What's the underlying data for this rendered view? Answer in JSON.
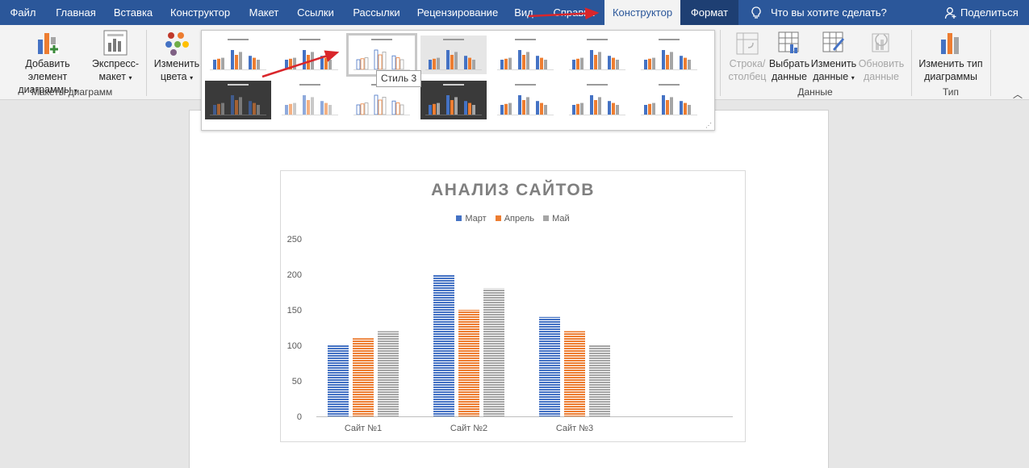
{
  "tabs": {
    "file": "Файл",
    "home": "Главная",
    "insert": "Вставка",
    "design": "Конструктор",
    "layout": "Макет",
    "references": "Ссылки",
    "mailings": "Рассылки",
    "review": "Рецензирование",
    "view": "Вид",
    "help": "Справка",
    "chart_design": "Конструктор",
    "format": "Формат"
  },
  "tell_me": "Что вы хотите сделать?",
  "share": "Поделиться",
  "ribbon": {
    "add_element_line1": "Добавить элемент",
    "add_element_line2": "диаграммы",
    "quick_layout_line1": "Экспресс-",
    "quick_layout_line2": "макет",
    "group_layouts": "Макеты диаграмм",
    "change_colors_line1": "Изменить",
    "change_colors_line2": "цвета",
    "switch_row_line1": "Строка/",
    "switch_row_line2": "столбец",
    "select_data_line1": "Выбрать",
    "select_data_line2": "данные",
    "edit_data_line1": "Изменить",
    "edit_data_line2": "данные",
    "refresh_data_line1": "Обновить",
    "refresh_data_line2": "данные",
    "group_data": "Данные",
    "change_type_line1": "Изменить тип",
    "change_type_line2": "диаграммы",
    "group_type": "Тип"
  },
  "gallery": {
    "tooltip": "Стиль 3",
    "selected_index": 2
  },
  "colors": {
    "word_blue": "#2b579a",
    "context_tab": "#1e3f73",
    "arrow": "#d9262b",
    "series_blue": "#4472c4",
    "series_orange": "#ed7d31",
    "series_gray": "#a5a5a5"
  },
  "chart_data": {
    "type": "bar",
    "title": "АНАЛИЗ САЙТОВ",
    "categories": [
      "Сайт №1",
      "Сайт №2",
      "Сайт №3"
    ],
    "series": [
      {
        "name": "Март",
        "values": [
          100,
          200,
          140
        ],
        "color": "#4472c4"
      },
      {
        "name": "Апрель",
        "values": [
          110,
          150,
          120
        ],
        "color": "#ed7d31"
      },
      {
        "name": "Май",
        "values": [
          120,
          180,
          100
        ],
        "color": "#a5a5a5"
      }
    ],
    "y_ticks": [
      "0",
      "50",
      "100",
      "150",
      "200",
      "250"
    ],
    "ylim": [
      0,
      250
    ],
    "legend_position": "top",
    "grid": false,
    "bar_fill": "horizontal-stripes"
  }
}
